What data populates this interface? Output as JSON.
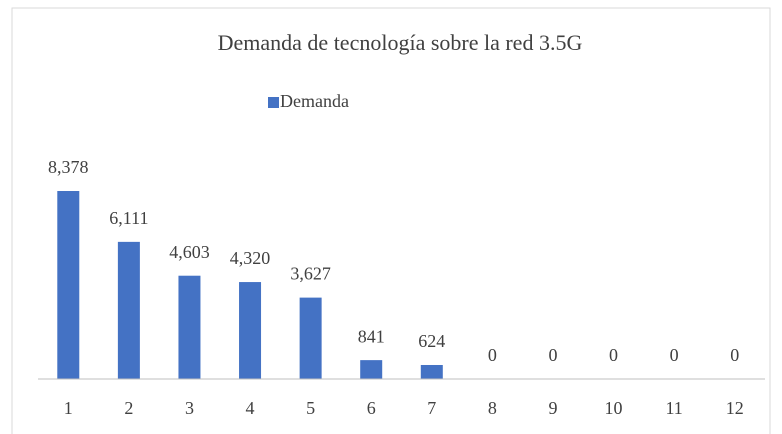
{
  "chart_data": {
    "type": "bar",
    "title": "Demanda de tecnología sobre la red 3.5G",
    "categories": [
      "1",
      "2",
      "3",
      "4",
      "5",
      "6",
      "7",
      "8",
      "9",
      "10",
      "11",
      "12"
    ],
    "series": [
      {
        "name": "Demanda",
        "color": "#4472c4",
        "values": [
          8378,
          6111,
          4603,
          4320,
          3627,
          841,
          624,
          0,
          0,
          0,
          0,
          0
        ],
        "value_labels": [
          "8,378",
          "6,111",
          "4,603",
          "4,320",
          "3,627",
          "841",
          "624",
          "0",
          "0",
          "0",
          "0",
          "0"
        ]
      }
    ],
    "legend": "top"
  }
}
